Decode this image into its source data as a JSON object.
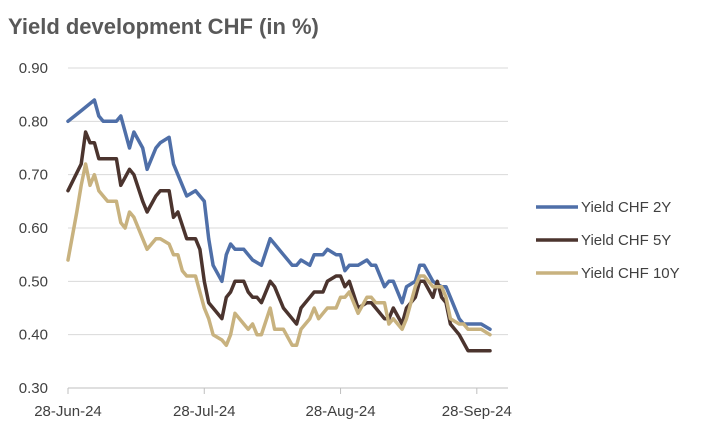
{
  "chart_data": {
    "type": "line",
    "title": "Yield development CHF (in %)",
    "xlabel": "",
    "ylabel": "",
    "x_tick_labels": [
      "28-Jun-24",
      "28-Jul-24",
      "28-Aug-24",
      "28-Sep-24"
    ],
    "x_range": [
      0,
      96
    ],
    "ylim": [
      0.3,
      0.9
    ],
    "y_ticks": [
      "0.30",
      "0.40",
      "0.50",
      "0.60",
      "0.70",
      "0.80",
      "0.90"
    ],
    "grid": "horizontal",
    "legend_position": "right",
    "series": [
      {
        "name": "Yield CHF 2Y",
        "color": "#4F6FA8",
        "x": [
          0,
          3,
          6,
          7,
          8,
          9,
          11,
          12,
          14,
          15,
          17,
          18,
          20,
          21,
          23,
          24,
          26,
          27,
          29,
          31,
          32,
          33,
          35,
          36,
          37,
          38,
          40,
          41,
          42,
          44,
          46,
          47,
          49,
          51,
          52,
          53,
          55,
          56,
          57,
          58,
          59,
          61,
          62,
          63,
          64,
          66,
          68,
          69,
          70,
          72,
          73,
          74,
          76,
          77,
          79,
          80,
          81,
          83,
          85,
          86,
          87,
          89,
          90,
          91,
          92,
          93,
          94,
          96
        ],
        "y": [
          0.8,
          0.82,
          0.84,
          0.81,
          0.8,
          0.8,
          0.8,
          0.81,
          0.75,
          0.78,
          0.75,
          0.71,
          0.75,
          0.76,
          0.77,
          0.72,
          0.68,
          0.66,
          0.67,
          0.65,
          0.58,
          0.53,
          0.5,
          0.55,
          0.57,
          0.56,
          0.56,
          0.55,
          0.54,
          0.53,
          0.58,
          0.57,
          0.55,
          0.53,
          0.53,
          0.54,
          0.53,
          0.55,
          0.55,
          0.55,
          0.56,
          0.55,
          0.55,
          0.52,
          0.53,
          0.53,
          0.54,
          0.53,
          0.53,
          0.49,
          0.5,
          0.5,
          0.46,
          0.49,
          0.5,
          0.53,
          0.53,
          0.5,
          0.49,
          0.49,
          0.47,
          0.43,
          0.42,
          0.42,
          0.42,
          0.42,
          0.42,
          0.41
        ]
      },
      {
        "name": "Yield CHF 5Y",
        "color": "#4B342E",
        "x": [
          0,
          3,
          4,
          5,
          6,
          7,
          8,
          9,
          11,
          12,
          14,
          15,
          17,
          18,
          20,
          21,
          23,
          24,
          25,
          27,
          29,
          30,
          31,
          32,
          33,
          35,
          36,
          37,
          38,
          40,
          41,
          42,
          43,
          44,
          46,
          47,
          49,
          51,
          52,
          53,
          55,
          56,
          57,
          58,
          59,
          61,
          62,
          63,
          64,
          66,
          68,
          69,
          70,
          72,
          73,
          74,
          76,
          77,
          79,
          80,
          81,
          83,
          84,
          85,
          86,
          87,
          89,
          91,
          92,
          93,
          94,
          96
        ],
        "y": [
          0.67,
          0.72,
          0.78,
          0.76,
          0.76,
          0.73,
          0.73,
          0.73,
          0.73,
          0.68,
          0.71,
          0.7,
          0.65,
          0.63,
          0.66,
          0.67,
          0.67,
          0.62,
          0.63,
          0.58,
          0.58,
          0.56,
          0.5,
          0.46,
          0.45,
          0.43,
          0.47,
          0.48,
          0.5,
          0.5,
          0.48,
          0.47,
          0.47,
          0.46,
          0.5,
          0.49,
          0.45,
          0.43,
          0.42,
          0.45,
          0.47,
          0.48,
          0.48,
          0.48,
          0.5,
          0.51,
          0.51,
          0.49,
          0.5,
          0.45,
          0.46,
          0.46,
          0.45,
          0.43,
          0.43,
          0.45,
          0.42,
          0.45,
          0.47,
          0.5,
          0.5,
          0.47,
          0.5,
          0.47,
          0.46,
          0.42,
          0.4,
          0.37,
          0.37,
          0.37,
          0.37,
          0.37
        ]
      },
      {
        "name": "Yield CHF 10Y",
        "color": "#C8B27F",
        "x": [
          0,
          2,
          3,
          4,
          5,
          6,
          7,
          8,
          9,
          11,
          12,
          13,
          14,
          15,
          17,
          18,
          20,
          21,
          23,
          24,
          25,
          26,
          27,
          29,
          30,
          31,
          32,
          33,
          35,
          36,
          37,
          38,
          40,
          41,
          42,
          43,
          44,
          46,
          47,
          49,
          51,
          52,
          53,
          55,
          56,
          57,
          58,
          59,
          60,
          61,
          62,
          63,
          64,
          66,
          68,
          69,
          70,
          72,
          73,
          74,
          76,
          77,
          79,
          80,
          81,
          83,
          85,
          86,
          87,
          89,
          90,
          91,
          92,
          93,
          94,
          96
        ],
        "y": [
          0.54,
          0.63,
          0.68,
          0.72,
          0.68,
          0.7,
          0.67,
          0.66,
          0.65,
          0.65,
          0.61,
          0.6,
          0.63,
          0.62,
          0.58,
          0.56,
          0.58,
          0.58,
          0.57,
          0.55,
          0.55,
          0.52,
          0.51,
          0.51,
          0.48,
          0.45,
          0.43,
          0.4,
          0.39,
          0.38,
          0.4,
          0.44,
          0.42,
          0.41,
          0.42,
          0.4,
          0.4,
          0.45,
          0.41,
          0.41,
          0.38,
          0.38,
          0.41,
          0.43,
          0.45,
          0.43,
          0.44,
          0.45,
          0.45,
          0.45,
          0.47,
          0.47,
          0.48,
          0.44,
          0.47,
          0.47,
          0.46,
          0.46,
          0.42,
          0.43,
          0.41,
          0.43,
          0.49,
          0.51,
          0.51,
          0.49,
          0.49,
          0.47,
          0.43,
          0.42,
          0.42,
          0.41,
          0.41,
          0.41,
          0.41,
          0.4
        ]
      }
    ]
  }
}
